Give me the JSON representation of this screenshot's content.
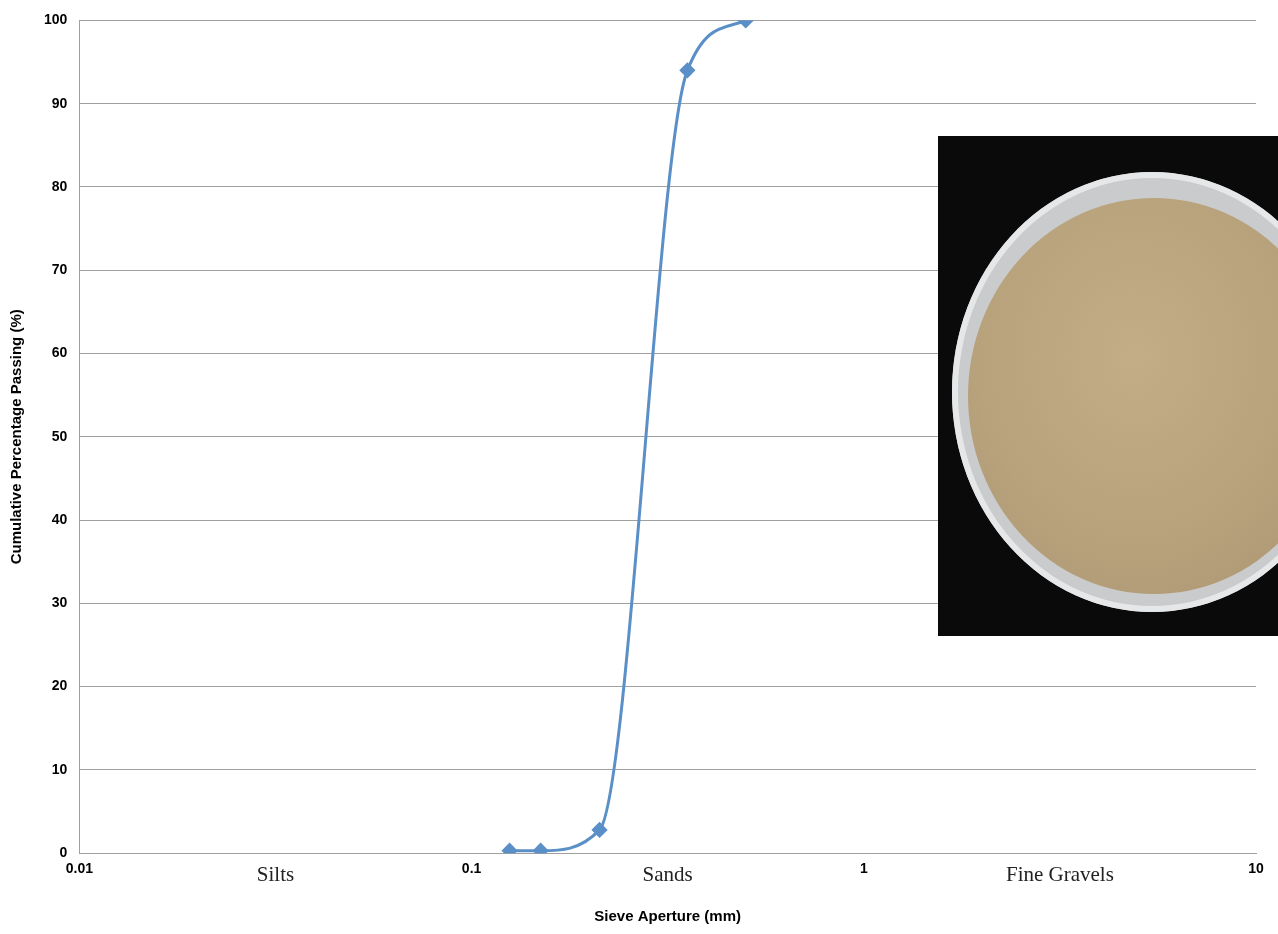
{
  "chart_data": {
    "type": "line",
    "x": [
      0.125,
      0.15,
      0.212,
      0.355,
      0.5
    ],
    "values": [
      0.3,
      0.3,
      2.8,
      94,
      100
    ],
    "color": "#5b8fc7",
    "marker": "diamond",
    "xlabel": "Sieve Aperture (mm)",
    "ylabel": "Cumulative Percentage Passing (%)",
    "log": "x",
    "xlim": [
      0.01,
      10
    ],
    "xticks": [
      0.01,
      0.1,
      1,
      10
    ],
    "ylim": [
      0,
      100
    ],
    "yticks": [
      0,
      10,
      20,
      30,
      40,
      50,
      60,
      70,
      80,
      90,
      100
    ],
    "grid": "y",
    "annotations": [
      "Silts",
      "Sands",
      "Fine Gravels"
    ]
  }
}
